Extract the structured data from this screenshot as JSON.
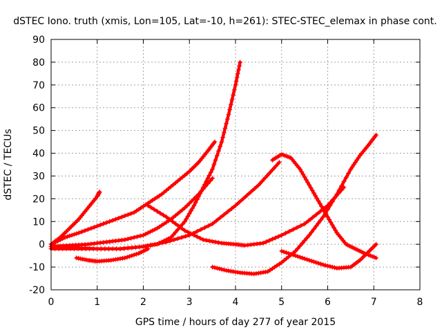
{
  "chart_data": {
    "type": "line",
    "title": "dSTEC Iono. truth (xmis, Lon=105, Lat=-10, h=261): STEC-STEC_elemax in phase cont.",
    "xlabel": "GPS time / hours of day 277 of year 2015",
    "ylabel": "dSTEC  / TECUs",
    "xlim": [
      0,
      8
    ],
    "ylim": [
      -20,
      90
    ],
    "xticks": [
      0,
      1,
      2,
      3,
      4,
      5,
      6,
      7,
      8
    ],
    "yticks": [
      -20,
      -10,
      0,
      10,
      20,
      30,
      40,
      50,
      60,
      70,
      80,
      90
    ],
    "grid": true,
    "color": "#ff0000",
    "marker": "plus",
    "series": [
      {
        "x": [
          0,
          0.2,
          0.4,
          0.6,
          0.8,
          1.0,
          1.05
        ],
        "y": [
          0,
          3,
          7,
          11,
          16,
          21,
          23
        ]
      },
      {
        "x": [
          0,
          0.3,
          0.6,
          1.0,
          1.4,
          1.8,
          2.1,
          2.4,
          2.7,
          3.0,
          3.2,
          3.4,
          3.55
        ],
        "y": [
          0,
          3,
          5,
          8,
          11,
          14,
          18,
          22,
          27,
          32,
          36,
          41,
          45
        ]
      },
      {
        "x": [
          0,
          0.4,
          0.8,
          1.2,
          1.6,
          2.0,
          2.3,
          2.6,
          2.9,
          3.2,
          3.5
        ],
        "y": [
          -1,
          -0.5,
          0,
          1,
          2,
          4,
          7,
          11,
          16,
          22,
          29
        ]
      },
      {
        "x": [
          0,
          0.5,
          1.0,
          1.5,
          2.0,
          2.3,
          2.6,
          2.9,
          3.1,
          3.3,
          3.5,
          3.7,
          3.85,
          4.0,
          4.1
        ],
        "y": [
          -1,
          -1.5,
          -2,
          -2,
          -1,
          0,
          3,
          10,
          17,
          25,
          33,
          45,
          57,
          70,
          80
        ]
      },
      {
        "x": [
          0,
          0.5,
          1.0,
          1.5,
          2.0,
          2.5,
          3.0,
          3.5,
          4.0,
          4.5,
          4.95
        ],
        "y": [
          -2,
          -2,
          -2,
          -2,
          -1,
          1,
          4,
          9,
          17,
          26,
          36
        ]
      },
      {
        "x": [
          2.1,
          2.5,
          2.9,
          3.3,
          3.7,
          4.0,
          4.2,
          4.6,
          5.0,
          5.5,
          6.0,
          6.35
        ],
        "y": [
          17,
          12,
          6,
          2,
          0.5,
          0,
          -0.5,
          0.5,
          4,
          9,
          17,
          25
        ]
      },
      {
        "x": [
          0.55,
          0.8,
          1.0,
          1.3,
          1.6,
          1.9,
          2.1
        ],
        "y": [
          -6,
          -7,
          -7.5,
          -7,
          -6,
          -4,
          -2
        ]
      },
      {
        "x": [
          3.5,
          3.8,
          4.1,
          4.4,
          4.7,
          5.0,
          5.3,
          5.6,
          5.9,
          6.2,
          6.5,
          6.7,
          6.9,
          7.05
        ],
        "y": [
          -10,
          -11.5,
          -12.5,
          -13,
          -12,
          -8,
          -3,
          4,
          12,
          22,
          33,
          39,
          44,
          48
        ]
      },
      {
        "x": [
          4.8,
          5.0,
          5.2,
          5.4,
          5.6,
          5.8,
          6.0,
          6.2,
          6.4,
          6.6,
          6.8,
          7.05
        ],
        "y": [
          37,
          39.5,
          38,
          33,
          26,
          19,
          12,
          5,
          0,
          -2,
          -4,
          -6
        ]
      },
      {
        "x": [
          5.0,
          5.3,
          5.6,
          5.9,
          6.2,
          6.5,
          6.7,
          6.9,
          7.05
        ],
        "y": [
          -3,
          -5,
          -7,
          -9,
          -10.5,
          -10,
          -7,
          -3,
          0
        ]
      }
    ]
  }
}
